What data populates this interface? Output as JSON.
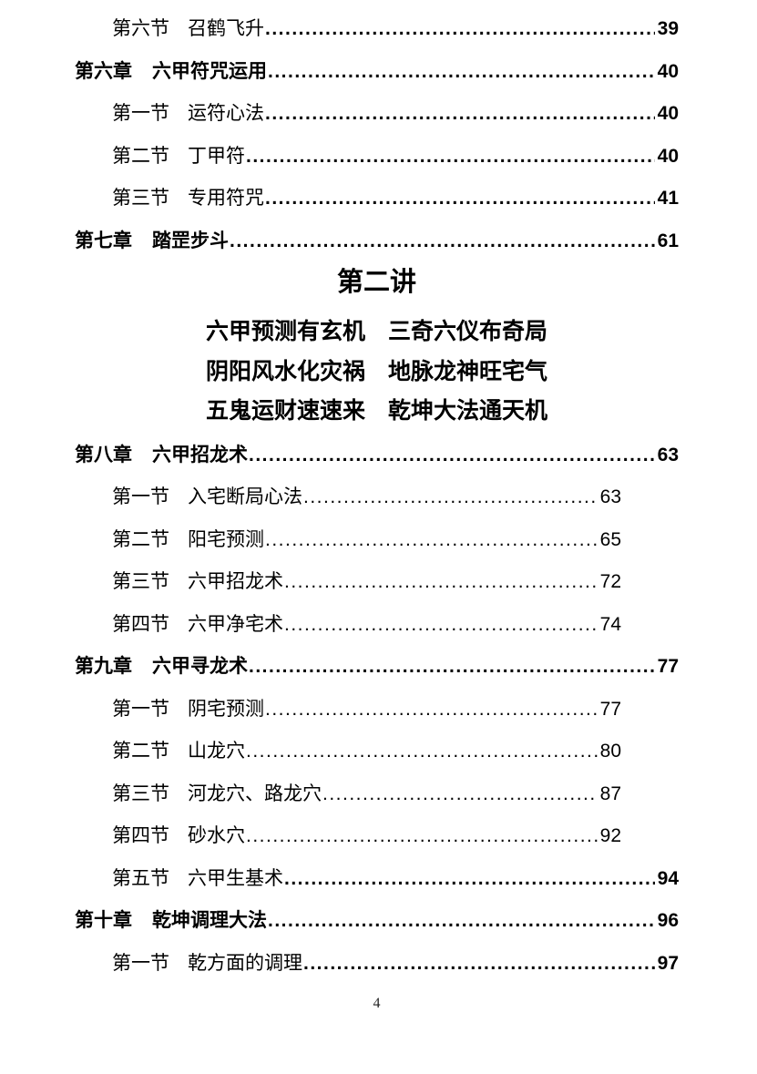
{
  "colors": {
    "text": "#000000",
    "background": "#ffffff"
  },
  "toc": {
    "top_entries": [
      {
        "level": "section",
        "label": "第六节",
        "title": "召鹤飞升",
        "page": "39",
        "bold_leader": true
      },
      {
        "level": "chapter",
        "label": "第六章",
        "title": "六甲符咒运用",
        "page": "40",
        "bold_leader": true
      },
      {
        "level": "section",
        "label": "第一节",
        "title": "运符心法",
        "page": "40",
        "bold_leader": true
      },
      {
        "level": "section",
        "label": "第二节",
        "title": "丁甲符",
        "page": "40",
        "bold_leader": true
      },
      {
        "level": "section",
        "label": "第三节",
        "title": "专用符咒",
        "page": "41",
        "bold_leader": true
      },
      {
        "level": "chapter",
        "label": "第七章",
        "title": "踏罡步斗",
        "page": "61",
        "bold_leader": true
      }
    ],
    "bottom_entries": [
      {
        "level": "chapter",
        "label": "第八章",
        "title": "六甲招龙术",
        "page": "63",
        "bold_leader": true
      },
      {
        "level": "section",
        "label": "第一节",
        "title": "入宅断局心法",
        "page": "63",
        "bold_leader": false
      },
      {
        "level": "section",
        "label": "第二节",
        "title": "阳宅预测",
        "page": "65",
        "bold_leader": false
      },
      {
        "level": "section",
        "label": "第三节",
        "title": "六甲招龙术",
        "page": "72",
        "bold_leader": false
      },
      {
        "level": "section",
        "label": "第四节",
        "title": "六甲净宅术",
        "page": "74",
        "bold_leader": false
      },
      {
        "level": "chapter",
        "label": "第九章",
        "title": "六甲寻龙术",
        "page": "77",
        "bold_leader": true
      },
      {
        "level": "section",
        "label": "第一节",
        "title": "阴宅预测",
        "page": "77",
        "bold_leader": false
      },
      {
        "level": "section",
        "label": "第二节",
        "title": "山龙穴",
        "page": "80",
        "bold_leader": false
      },
      {
        "level": "section",
        "label": "第三节",
        "title": "河龙穴、路龙穴",
        "page": "87",
        "bold_leader": false
      },
      {
        "level": "section",
        "label": "第四节",
        "title": "砂水穴",
        "page": "92",
        "bold_leader": false
      },
      {
        "level": "section",
        "label": "第五节",
        "title": "六甲生基术",
        "page": "94",
        "bold_leader": true
      },
      {
        "level": "chapter",
        "label": "第十章",
        "title": "乾坤调理大法",
        "page": "96",
        "bold_leader": true
      },
      {
        "level": "section",
        "label": "第一节",
        "title": "乾方面的调理",
        "page": "97",
        "bold_leader": true
      }
    ]
  },
  "lecture_heading": {
    "title": "第二讲",
    "couplets": [
      "六甲预测有玄机　三奇六仪布奇局",
      "阴阳风水化灾祸　地脉龙神旺宅气",
      "五鬼运财速速来　乾坤大法通天机"
    ]
  },
  "footer": {
    "page_number": "4"
  }
}
